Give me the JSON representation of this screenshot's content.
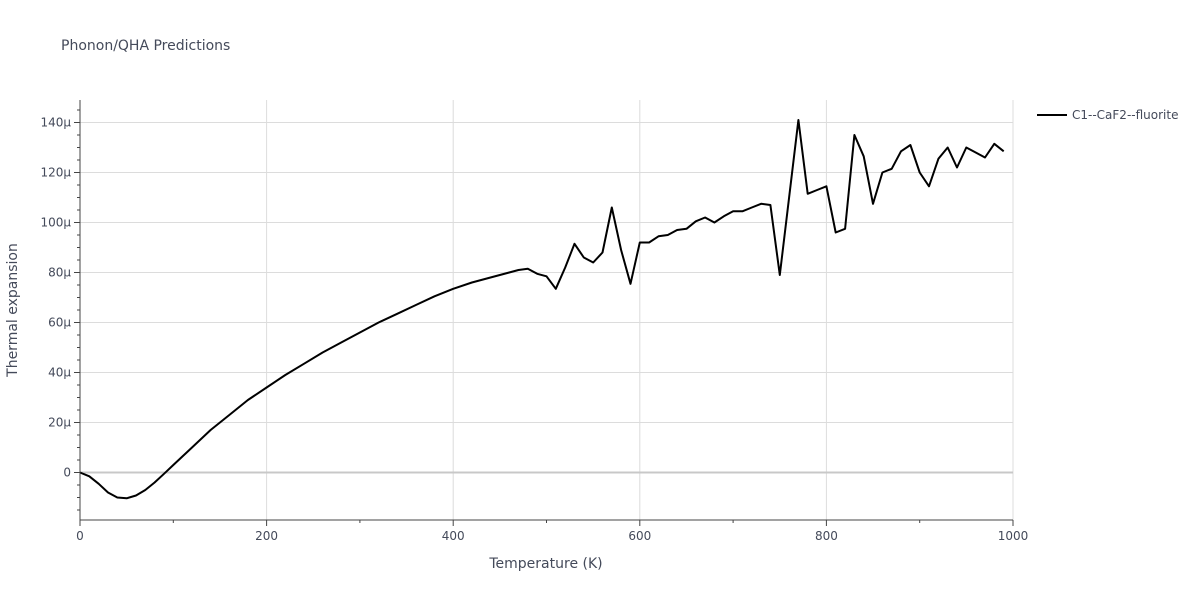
{
  "chart_data": {
    "type": "line",
    "title": "Phonon/QHA Predictions",
    "xlabel": "Temperature (K)",
    "ylabel": "Thermal expansion",
    "xlim": [
      0,
      1000
    ],
    "ylim": [
      -19,
      149
    ],
    "x_ticks": [
      0,
      200,
      400,
      600,
      800,
      1000
    ],
    "x_tick_labels": [
      "0",
      "200",
      "400",
      "600",
      "800",
      "1000"
    ],
    "y_ticks": [
      0,
      20,
      40,
      60,
      80,
      100,
      120,
      140
    ],
    "y_tick_labels": [
      "0",
      "20µ",
      "40µ",
      "60µ",
      "80µ",
      "100µ",
      "120µ",
      "140µ"
    ],
    "y_unit_scale": "µ (×1e-6)",
    "grid": true,
    "legend_position": "top-right, outside plot",
    "series": [
      {
        "name": "C1--CaF2--fluorite",
        "color": "#000000",
        "x": [
          0,
          10,
          20,
          30,
          40,
          50,
          60,
          70,
          80,
          90,
          100,
          120,
          140,
          160,
          180,
          200,
          220,
          240,
          260,
          280,
          300,
          320,
          340,
          360,
          380,
          400,
          420,
          440,
          460,
          470,
          480,
          490,
          500,
          510,
          520,
          530,
          540,
          550,
          560,
          570,
          580,
          590,
          600,
          610,
          620,
          630,
          640,
          650,
          660,
          670,
          680,
          690,
          700,
          710,
          720,
          730,
          740,
          750,
          760,
          770,
          780,
          790,
          800,
          810,
          820,
          830,
          840,
          850,
          860,
          870,
          880,
          890,
          900,
          910,
          920,
          930,
          940,
          950,
          960,
          970,
          980,
          990
        ],
        "y": [
          0,
          -1.5,
          -4.5,
          -8,
          -10,
          -10.3,
          -9.2,
          -7,
          -4,
          -0.5,
          3,
          10,
          17,
          23,
          29,
          34,
          39,
          43.5,
          48,
          52,
          56,
          60,
          63.5,
          67,
          70.5,
          73.5,
          76,
          78,
          80,
          81,
          81.5,
          79.5,
          78.5,
          73.5,
          82,
          91.5,
          86,
          84,
          88,
          106,
          89,
          75.5,
          92,
          92,
          94.5,
          95,
          97,
          97.5,
          100.5,
          102,
          100,
          102.5,
          104.5,
          104.5,
          106,
          107.5,
          107,
          79,
          110,
          141,
          111.5,
          113,
          114.5,
          96,
          97.5,
          135,
          126.5,
          107.5,
          120,
          121.5,
          128.5,
          131,
          120,
          114.5,
          125.5,
          130,
          122,
          130,
          128,
          126,
          131.5,
          128.5
        ]
      }
    ]
  }
}
